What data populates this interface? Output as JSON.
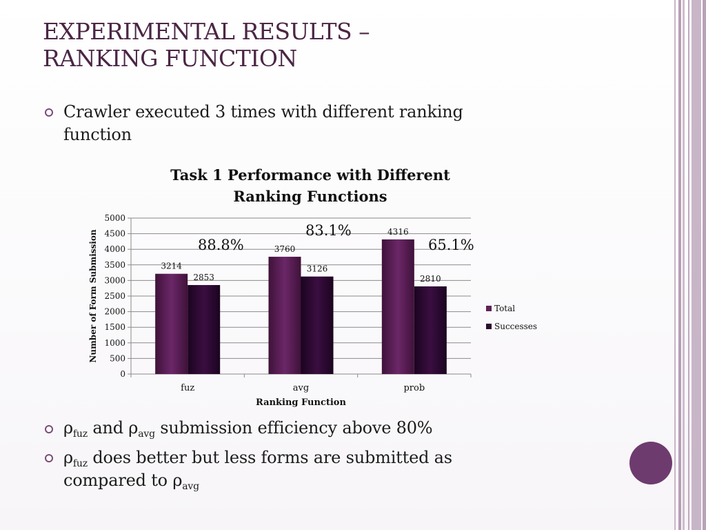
{
  "slide": {
    "title_line1": "EXPERIMENTAL RESULTS –",
    "title_line2": "RANKING FUNCTION",
    "bullet1": "Crawler executed 3 times with different ranking",
    "bullet1_cont": "function",
    "bullet2": {
      "rho1": "ρ",
      "sub1": "fuz",
      "mid": " and ",
      "rho2": "ρ",
      "sub2": "avg",
      "rest": " submission efficiency above 80%"
    },
    "bullet3": {
      "rho1": "ρ",
      "sub1": "fuz",
      "rest": " does better but less forms are submitted as",
      "line2": "compared to ",
      "rho2": "ρ",
      "sub2": "avg"
    },
    "colors": {
      "title": "#4b2645",
      "accent": "#6e3b6f",
      "bullet": "#7b4a7a"
    }
  },
  "chart_data": {
    "type": "bar",
    "title_line1": "Task 1 Performance with Different",
    "title_line2": "Ranking Functions",
    "xlabel": "Ranking Function",
    "ylabel": "Number of Form Submission",
    "categories": [
      "fuz",
      "avg",
      "prob"
    ],
    "series": [
      {
        "name": "Total",
        "values": [
          3214,
          3760,
          4316
        ],
        "color": "#5e2157"
      },
      {
        "name": "Successes",
        "values": [
          2853,
          3126,
          2810
        ],
        "color": "#2c0a31"
      }
    ],
    "ylim": [
      0,
      5000
    ],
    "yticks": [
      0,
      500,
      1000,
      1500,
      2000,
      2500,
      3000,
      3500,
      4000,
      4500,
      5000
    ],
    "grid": true,
    "legend_position": "right",
    "annotations": [
      "88.8%",
      "83.1%",
      "65.1%"
    ]
  }
}
